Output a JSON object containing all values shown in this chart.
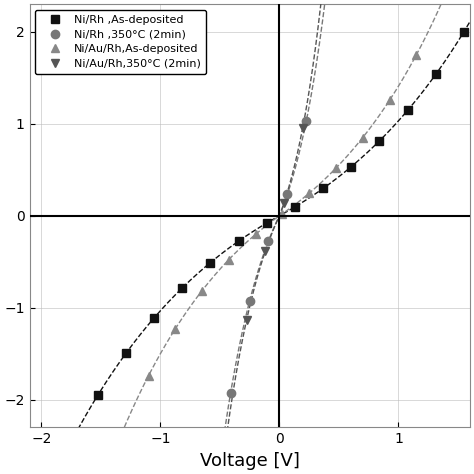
{
  "title": "",
  "xlabel": "Voltage [V]",
  "ylabel": "",
  "xlim": [
    -2.1,
    1.6
  ],
  "ylim": [
    -2.3,
    2.3
  ],
  "xticks": [
    -2,
    -1,
    0,
    1
  ],
  "yticks": [
    -2,
    -1,
    0,
    1,
    2
  ],
  "background_color": "#ffffff",
  "series": [
    {
      "label": "Ni/Rh ,As-deposited",
      "color": "#111111",
      "marker": "s",
      "markersize": 6,
      "curve": "ni_rh_as"
    },
    {
      "label": "Ni/Rh ,350°C (2min)",
      "color": "#777777",
      "marker": "o",
      "markersize": 6,
      "curve": "ni_rh_an"
    },
    {
      "label": "Ni/Au/Rh,As-deposited",
      "color": "#888888",
      "marker": "^",
      "markersize": 6,
      "curve": "ni_au_rh_as"
    },
    {
      "label": "Ni/Au/Rh,350°C (2min)",
      "color": "#555555",
      "marker": "v",
      "markersize": 6,
      "curve": "ni_au_rh_an"
    }
  ]
}
